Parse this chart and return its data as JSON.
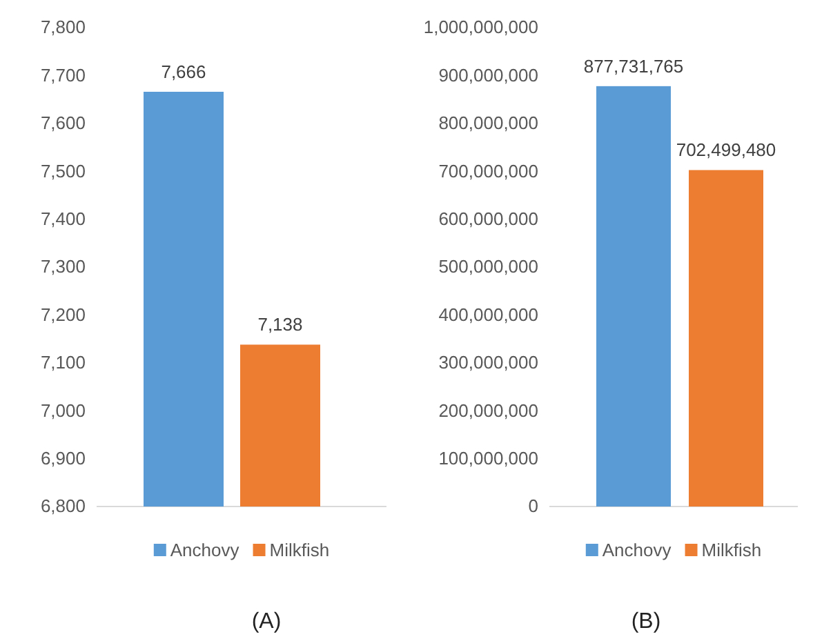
{
  "chart_data": [
    {
      "type": "bar",
      "xlabel": "(A)",
      "categories": [
        null
      ],
      "series": [
        {
          "name": "Anchovy",
          "color": "#5b9bd5",
          "values": [
            7666
          ],
          "value_labels": [
            "7,666"
          ]
        },
        {
          "name": "Milkfish",
          "color": "#ed7d31",
          "values": [
            7138
          ],
          "value_labels": [
            "7,138"
          ]
        }
      ],
      "ylim": [
        6800,
        7800
      ],
      "yticks": [
        {
          "value": 6800,
          "label": "6,800"
        },
        {
          "value": 6900,
          "label": "6,900"
        },
        {
          "value": 7000,
          "label": "7,000"
        },
        {
          "value": 7100,
          "label": "7,100"
        },
        {
          "value": 7200,
          "label": "7,200"
        },
        {
          "value": 7300,
          "label": "7,300"
        },
        {
          "value": 7400,
          "label": "7,400"
        },
        {
          "value": 7500,
          "label": "7,500"
        },
        {
          "value": 7600,
          "label": "7,600"
        },
        {
          "value": 7700,
          "label": "7,700"
        },
        {
          "value": 7800,
          "label": "7,800"
        }
      ],
      "legend": "bottom",
      "tick_labels": "y"
    },
    {
      "type": "bar",
      "xlabel": "(B)",
      "categories": [
        null
      ],
      "series": [
        {
          "name": "Anchovy",
          "color": "#5b9bd5",
          "values": [
            877731765
          ],
          "value_labels": [
            "877,731,765"
          ]
        },
        {
          "name": "Milkfish",
          "color": "#ed7d31",
          "values": [
            702499480
          ],
          "value_labels": [
            "702,499,480"
          ]
        }
      ],
      "ylim": [
        0,
        1000000000
      ],
      "yticks": [
        0,
        {
          "value": 100000000,
          "label": "100,000,000"
        },
        {
          "value": 200000000,
          "label": "200,000,000"
        },
        {
          "value": 300000000,
          "label": "300,000,000"
        },
        {
          "value": 400000000,
          "label": "400,000,000"
        },
        {
          "value": 500000000,
          "label": "500,000,000"
        },
        {
          "value": 600000000,
          "label": "600,000,000"
        },
        {
          "value": 700000000,
          "label": "700,000,000"
        },
        {
          "value": 800000000,
          "label": "800,000,000"
        },
        {
          "value": 900000000,
          "label": "900,000,000"
        },
        {
          "value": 1000000000,
          "label": "1,000,000,000"
        }
      ],
      "legend": "bottom",
      "tick_labels": "y"
    }
  ]
}
